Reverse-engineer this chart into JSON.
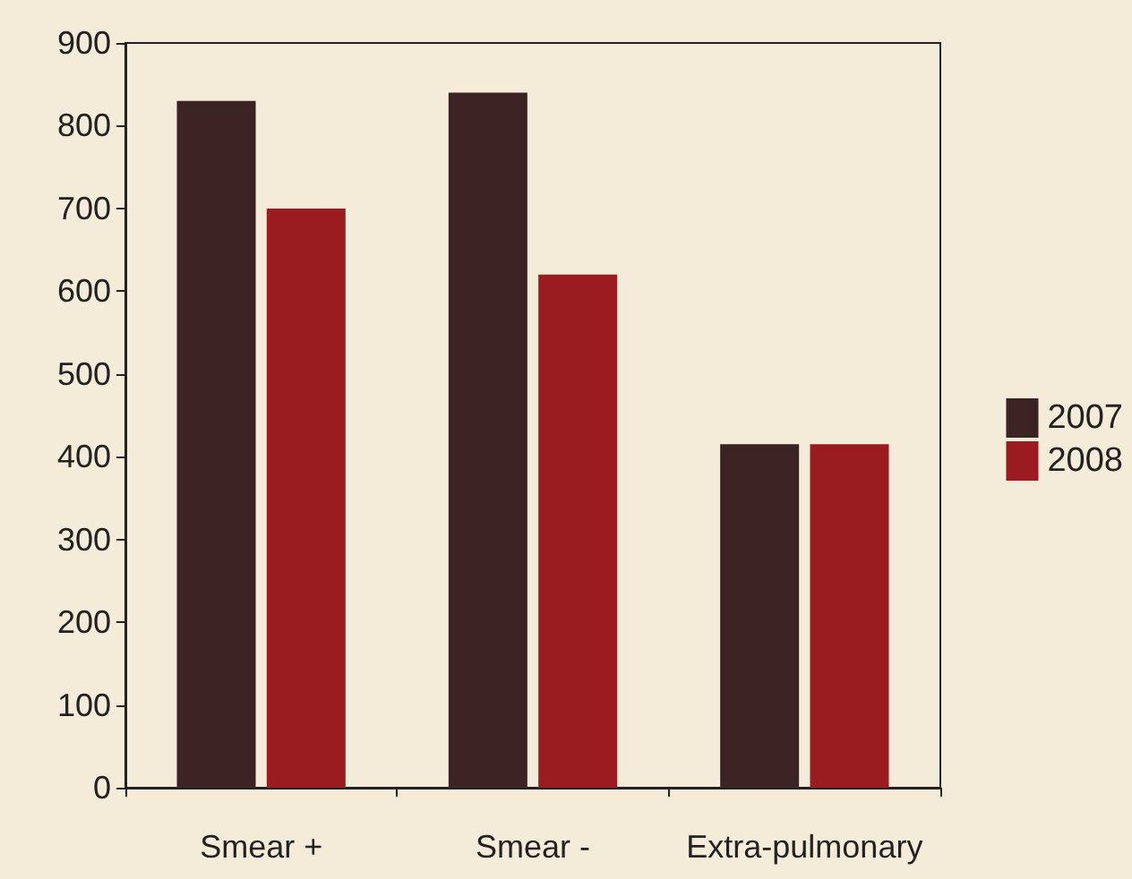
{
  "chart_data": {
    "type": "bar",
    "categories": [
      "Smear +",
      "Smear -",
      "Extra-pulmonary"
    ],
    "series": [
      {
        "name": "2007",
        "color": "#3b2323",
        "values": [
          830,
          840,
          415
        ]
      },
      {
        "name": "2008",
        "color": "#9b1c20",
        "values": [
          700,
          620,
          415
        ]
      }
    ],
    "ylim": [
      0,
      900
    ],
    "yticks": [
      0,
      100,
      200,
      300,
      400,
      500,
      600,
      700,
      800,
      900
    ],
    "grid": false,
    "legend": "right"
  }
}
